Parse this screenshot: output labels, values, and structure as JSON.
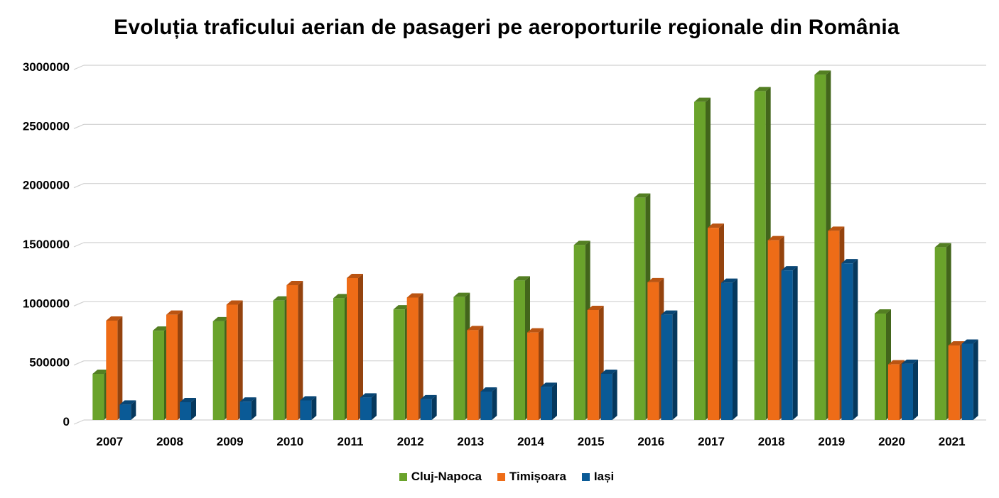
{
  "chart_data": {
    "type": "bar",
    "title": "Evoluția traficului aerian de pasageri pe aeroporturile regionale din România",
    "xlabel": "",
    "ylabel": "",
    "ylim": [
      0,
      3000000
    ],
    "yticks": [
      0,
      500000,
      1000000,
      1500000,
      2000000,
      2500000,
      3000000
    ],
    "ytick_labels": [
      "0",
      "500000",
      "1000000",
      "1500000",
      "2000000",
      "2500000",
      "3000000"
    ],
    "grid": true,
    "legend_position": "bottom",
    "categories": [
      "2007",
      "2008",
      "2009",
      "2010",
      "2011",
      "2012",
      "2013",
      "2014",
      "2015",
      "2016",
      "2017",
      "2018",
      "2019",
      "2020",
      "2021"
    ],
    "series": [
      {
        "name": "Cluj-Napoca",
        "color": "#6AA32B",
        "values": [
          390000,
          755000,
          835000,
          1010000,
          1030000,
          935000,
          1040000,
          1180000,
          1480000,
          1880000,
          2690000,
          2780000,
          2920000,
          900000,
          1460000
        ]
      },
      {
        "name": "Timișoara",
        "color": "#EE6C17",
        "values": [
          840000,
          890000,
          975000,
          1140000,
          1200000,
          1035000,
          760000,
          740000,
          930000,
          1165000,
          1625000,
          1520000,
          1600000,
          470000,
          630000
        ]
      },
      {
        "name": "Iași",
        "color": "#0A5A96",
        "values": [
          130000,
          150000,
          155000,
          165000,
          190000,
          175000,
          240000,
          280000,
          390000,
          890000,
          1160000,
          1265000,
          1325000,
          475000,
          645000
        ]
      }
    ]
  }
}
